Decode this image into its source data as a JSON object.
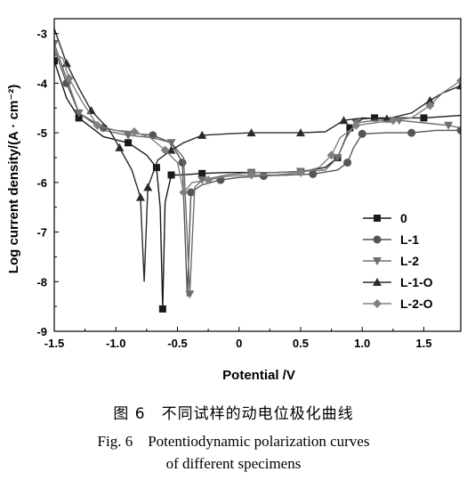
{
  "caption": {
    "zh": "图 6　不同试样的动电位极化曲线",
    "en_line1": "Fig. 6　Potentiodynamic polarization curves",
    "en_line2": "of different specimens"
  },
  "chart_data": {
    "type": "line",
    "title": "",
    "xlabel": "Potential /V",
    "ylabel": "Log current density/(A · cm⁻²)",
    "xlim": [
      -1.5,
      1.8
    ],
    "ylim": [
      -9,
      -2.7
    ],
    "xticks": [
      -1.5,
      -1.0,
      -0.5,
      0,
      0.5,
      1.0,
      1.5
    ],
    "xtick_labels": [
      "-1.5",
      "-1.0",
      "-0.5",
      "0",
      "0.5",
      "1.0",
      "1.5"
    ],
    "yticks": [
      -9,
      -8,
      -7,
      -6,
      -5,
      -4,
      -3
    ],
    "ytick_labels": [
      "-9",
      "-8",
      "-7",
      "-6",
      "-5",
      "-4",
      "-3"
    ],
    "grid": false,
    "legend_position": "bottom-right",
    "series": [
      {
        "name": "0",
        "color": "#1a1a1a",
        "marker": "square",
        "points": [
          [
            -1.5,
            -3.55
          ],
          [
            -1.4,
            -4.3
          ],
          [
            -1.3,
            -4.7
          ],
          [
            -1.1,
            -5.08
          ],
          [
            -0.9,
            -5.2
          ],
          [
            -0.75,
            -5.45
          ],
          [
            -0.67,
            -5.7
          ],
          [
            -0.64,
            -6.5
          ],
          [
            -0.62,
            -8.55
          ],
          [
            -0.6,
            -6.4
          ],
          [
            -0.55,
            -5.85
          ],
          [
            -0.48,
            -5.85
          ],
          [
            -0.3,
            -5.82
          ],
          [
            -0.1,
            -5.8
          ],
          [
            0.1,
            -5.8
          ],
          [
            0.3,
            -5.8
          ],
          [
            0.5,
            -5.78
          ],
          [
            0.7,
            -5.7
          ],
          [
            0.8,
            -5.5
          ],
          [
            0.85,
            -5.2
          ],
          [
            0.9,
            -4.9
          ],
          [
            1.0,
            -4.72
          ],
          [
            1.1,
            -4.7
          ],
          [
            1.3,
            -4.7
          ],
          [
            1.5,
            -4.7
          ],
          [
            1.8,
            -4.65
          ]
        ]
      },
      {
        "name": "L-1",
        "color": "#555555",
        "marker": "circle",
        "points": [
          [
            -1.5,
            -3.3
          ],
          [
            -1.4,
            -4.0
          ],
          [
            -1.3,
            -4.6
          ],
          [
            -1.1,
            -4.9
          ],
          [
            -0.9,
            -5.0
          ],
          [
            -0.7,
            -5.05
          ],
          [
            -0.55,
            -5.2
          ],
          [
            -0.46,
            -5.6
          ],
          [
            -0.42,
            -8.3
          ],
          [
            -0.39,
            -6.2
          ],
          [
            -0.3,
            -6.05
          ],
          [
            -0.15,
            -5.95
          ],
          [
            0,
            -5.9
          ],
          [
            0.2,
            -5.87
          ],
          [
            0.4,
            -5.85
          ],
          [
            0.6,
            -5.83
          ],
          [
            0.8,
            -5.75
          ],
          [
            0.88,
            -5.6
          ],
          [
            0.93,
            -5.3
          ],
          [
            1.0,
            -5.02
          ],
          [
            1.2,
            -5.0
          ],
          [
            1.4,
            -5.0
          ],
          [
            1.6,
            -4.95
          ],
          [
            1.8,
            -4.95
          ]
        ]
      },
      {
        "name": "L-2",
        "color": "#6e6e6e",
        "marker": "triangle-down",
        "points": [
          [
            -1.5,
            -3.2
          ],
          [
            -1.4,
            -3.9
          ],
          [
            -1.3,
            -4.6
          ],
          [
            -1.1,
            -4.95
          ],
          [
            -0.9,
            -5.05
          ],
          [
            -0.7,
            -5.1
          ],
          [
            -0.55,
            -5.2
          ],
          [
            -0.45,
            -5.5
          ],
          [
            -0.4,
            -8.25
          ],
          [
            -0.36,
            -6.1
          ],
          [
            -0.3,
            -5.95
          ],
          [
            -0.1,
            -5.85
          ],
          [
            0.1,
            -5.8
          ],
          [
            0.3,
            -5.8
          ],
          [
            0.5,
            -5.78
          ],
          [
            0.7,
            -5.75
          ],
          [
            0.8,
            -5.5
          ],
          [
            0.87,
            -5.1
          ],
          [
            0.95,
            -4.8
          ],
          [
            1.1,
            -4.75
          ],
          [
            1.3,
            -4.75
          ],
          [
            1.5,
            -4.8
          ],
          [
            1.7,
            -4.85
          ],
          [
            1.8,
            -4.9
          ]
        ]
      },
      {
        "name": "L-1-O",
        "color": "#2a2a2a",
        "marker": "triangle-up",
        "points": [
          [
            -1.5,
            -2.9
          ],
          [
            -1.4,
            -3.6
          ],
          [
            -1.3,
            -4.1
          ],
          [
            -1.2,
            -4.55
          ],
          [
            -1.05,
            -4.95
          ],
          [
            -0.97,
            -5.3
          ],
          [
            -0.87,
            -5.75
          ],
          [
            -0.8,
            -6.3
          ],
          [
            -0.77,
            -8.0
          ],
          [
            -0.74,
            -6.1
          ],
          [
            -0.66,
            -5.55
          ],
          [
            -0.55,
            -5.35
          ],
          [
            -0.45,
            -5.2
          ],
          [
            -0.3,
            -5.05
          ],
          [
            -0.1,
            -5.02
          ],
          [
            0.1,
            -5.0
          ],
          [
            0.3,
            -5.0
          ],
          [
            0.5,
            -5.0
          ],
          [
            0.7,
            -4.98
          ],
          [
            0.85,
            -4.75
          ],
          [
            1.0,
            -4.7
          ],
          [
            1.2,
            -4.72
          ],
          [
            1.4,
            -4.6
          ],
          [
            1.55,
            -4.35
          ],
          [
            1.65,
            -4.2
          ],
          [
            1.8,
            -4.05
          ]
        ]
      },
      {
        "name": "L-2-O",
        "color": "#808080",
        "marker": "diamond",
        "points": [
          [
            -1.5,
            -3.4
          ],
          [
            -1.43,
            -3.5
          ],
          [
            -1.38,
            -3.9
          ],
          [
            -1.28,
            -4.35
          ],
          [
            -1.15,
            -4.85
          ],
          [
            -1.0,
            -4.95
          ],
          [
            -0.85,
            -4.98
          ],
          [
            -0.72,
            -5.1
          ],
          [
            -0.6,
            -5.35
          ],
          [
            -0.5,
            -5.6
          ],
          [
            -0.45,
            -6.2
          ],
          [
            -0.38,
            -6.0
          ],
          [
            -0.25,
            -5.95
          ],
          [
            -0.1,
            -5.88
          ],
          [
            0.1,
            -5.85
          ],
          [
            0.3,
            -5.85
          ],
          [
            0.5,
            -5.8
          ],
          [
            0.65,
            -5.7
          ],
          [
            0.75,
            -5.45
          ],
          [
            0.82,
            -5.1
          ],
          [
            0.95,
            -4.85
          ],
          [
            1.1,
            -4.8
          ],
          [
            1.25,
            -4.75
          ],
          [
            1.4,
            -4.7
          ],
          [
            1.55,
            -4.45
          ],
          [
            1.65,
            -4.2
          ],
          [
            1.8,
            -3.95
          ]
        ]
      }
    ]
  }
}
